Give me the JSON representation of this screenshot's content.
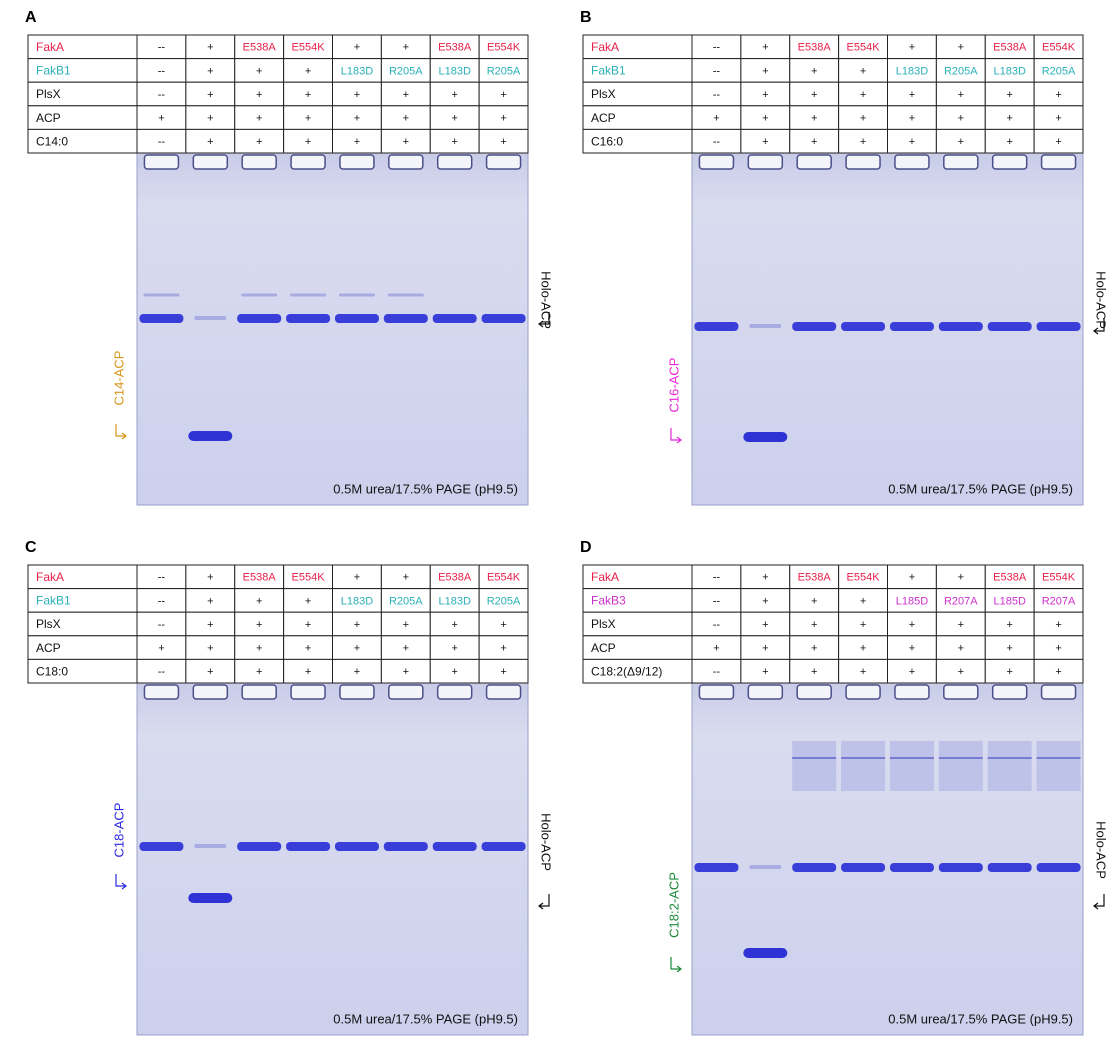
{
  "panels": [
    {
      "label": "A",
      "note": "0.5M urea/17.5% PAGE (pH9.5)",
      "left_label": "C14-ACP",
      "left_label_color": "#d8961a",
      "right_label": "Holo-ACP",
      "table": {
        "rows": [
          {
            "cells": [
              "FakA",
              "--",
              "+",
              "E538A",
              "E554K",
              "+",
              "+",
              "E538A",
              "E554K"
            ],
            "color": "#e8204a"
          },
          {
            "cells": [
              "FakB1",
              "--",
              "+",
              "+",
              "+",
              "L183D",
              "R205A",
              "L183D",
              "R205A"
            ],
            "color": "#2bb0b8"
          },
          {
            "cells": [
              "PlsX",
              "--",
              "+",
              "+",
              "+",
              "+",
              "+",
              "+",
              "+"
            ]
          },
          {
            "cells": [
              "ACP",
              "+",
              "+",
              "+",
              "+",
              "+",
              "+",
              "+",
              "+"
            ]
          },
          {
            "cells": [
              "C14:0",
              "--",
              "+",
              "+",
              "+",
              "+",
              "+",
              "+",
              "+"
            ]
          }
        ]
      }
    },
    {
      "label": "B",
      "note": "0.5M urea/17.5% PAGE (pH9.5)",
      "left_label": "C16-ACP",
      "left_label_color": "#e926d8",
      "right_label": "Holo-ACP",
      "table": {
        "rows": [
          {
            "cells": [
              "FakA",
              "--",
              "+",
              "E538A",
              "E554K",
              "+",
              "+",
              "E538A",
              "E554K"
            ],
            "color": "#e8204a"
          },
          {
            "cells": [
              "FakB1",
              "--",
              "+",
              "+",
              "+",
              "L183D",
              "R205A",
              "L183D",
              "R205A"
            ],
            "color": "#2bb0b8"
          },
          {
            "cells": [
              "PlsX",
              "--",
              "+",
              "+",
              "+",
              "+",
              "+",
              "+",
              "+"
            ]
          },
          {
            "cells": [
              "ACP",
              "+",
              "+",
              "+",
              "+",
              "+",
              "+",
              "+",
              "+"
            ]
          },
          {
            "cells": [
              "C16:0",
              "--",
              "+",
              "+",
              "+",
              "+",
              "+",
              "+",
              "+"
            ]
          }
        ]
      }
    },
    {
      "label": "C",
      "note": "0.5M urea/17.5% PAGE (pH9.5)",
      "left_label": "C18-ACP",
      "left_label_color": "#2a2ae0",
      "right_label": "Holo-ACP",
      "table": {
        "rows": [
          {
            "cells": [
              "FakA",
              "--",
              "+",
              "E538A",
              "E554K",
              "+",
              "+",
              "E538A",
              "E554K"
            ],
            "color": "#e8204a"
          },
          {
            "cells": [
              "FakB1",
              "--",
              "+",
              "+",
              "+",
              "L183D",
              "R205A",
              "L183D",
              "R205A"
            ],
            "color": "#2bb0b8"
          },
          {
            "cells": [
              "PlsX",
              "--",
              "+",
              "+",
              "+",
              "+",
              "+",
              "+",
              "+"
            ]
          },
          {
            "cells": [
              "ACP",
              "+",
              "+",
              "+",
              "+",
              "+",
              "+",
              "+",
              "+"
            ]
          },
          {
            "cells": [
              "C18:0",
              "--",
              "+",
              "+",
              "+",
              "+",
              "+",
              "+",
              "+"
            ]
          }
        ]
      }
    },
    {
      "label": "D",
      "note": "0.5M urea/17.5% PAGE (pH9.5)",
      "left_label": "C18:2-ACP",
      "left_label_color": "#1a8a3a",
      "right_label": "Holo-ACP",
      "table": {
        "rows": [
          {
            "cells": [
              "FakA",
              "--",
              "+",
              "E538A",
              "E554K",
              "+",
              "+",
              "E538A",
              "E554K"
            ],
            "color": "#e8204a"
          },
          {
            "cells": [
              "FakB3",
              "--",
              "+",
              "+",
              "+",
              "L185D",
              "R207A",
              "L185D",
              "R207A"
            ],
            "color": "#cc30cc"
          },
          {
            "cells": [
              "PlsX",
              "--",
              "+",
              "+",
              "+",
              "+",
              "+",
              "+",
              "+"
            ]
          },
          {
            "cells": [
              "ACP",
              "+",
              "+",
              "+",
              "+",
              "+",
              "+",
              "+",
              "+"
            ]
          },
          {
            "cells": [
              "C18:2(Δ9/12)",
              "--",
              "+",
              "+",
              "+",
              "+",
              "+",
              "+",
              "+"
            ]
          }
        ]
      }
    }
  ]
}
